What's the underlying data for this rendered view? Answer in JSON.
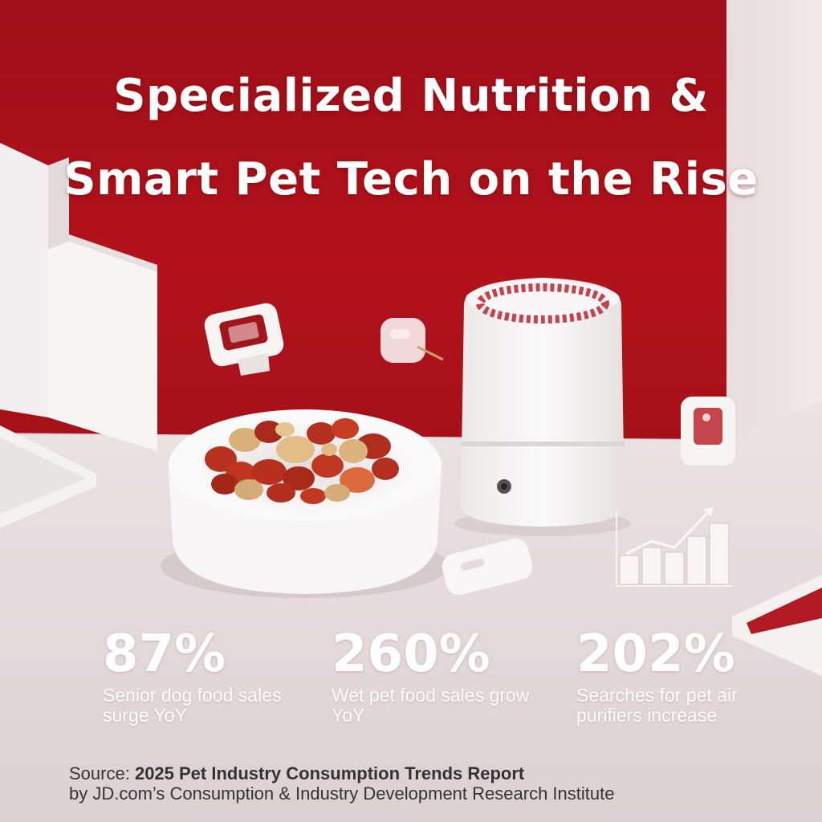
{
  "headline": {
    "line1": "Specialized Nutrition &",
    "line2": "Smart Pet Tech on the Rise"
  },
  "stats": [
    {
      "value": "87%",
      "label": "Senior dog food sales surge YoY"
    },
    {
      "value": "260%",
      "label": "Wet pet food sales grow YoY"
    },
    {
      "value": "202%",
      "label": "Searches for pet air purifiers increase"
    }
  ],
  "source": {
    "prefix": "Source:",
    "report": "2025 Pet Industry Consumption Trends Report",
    "byline": "by JD.com’s Consumption & Industry Development Research Institute"
  },
  "colors": {
    "wall_red": "#b3121c",
    "surface": "#e9dfe1",
    "device_white": "#f6f4f4",
    "food_red": "#b32c1e",
    "text": "#333333"
  },
  "icons": [
    "bar-chart-icon",
    "trend-line-icon"
  ]
}
